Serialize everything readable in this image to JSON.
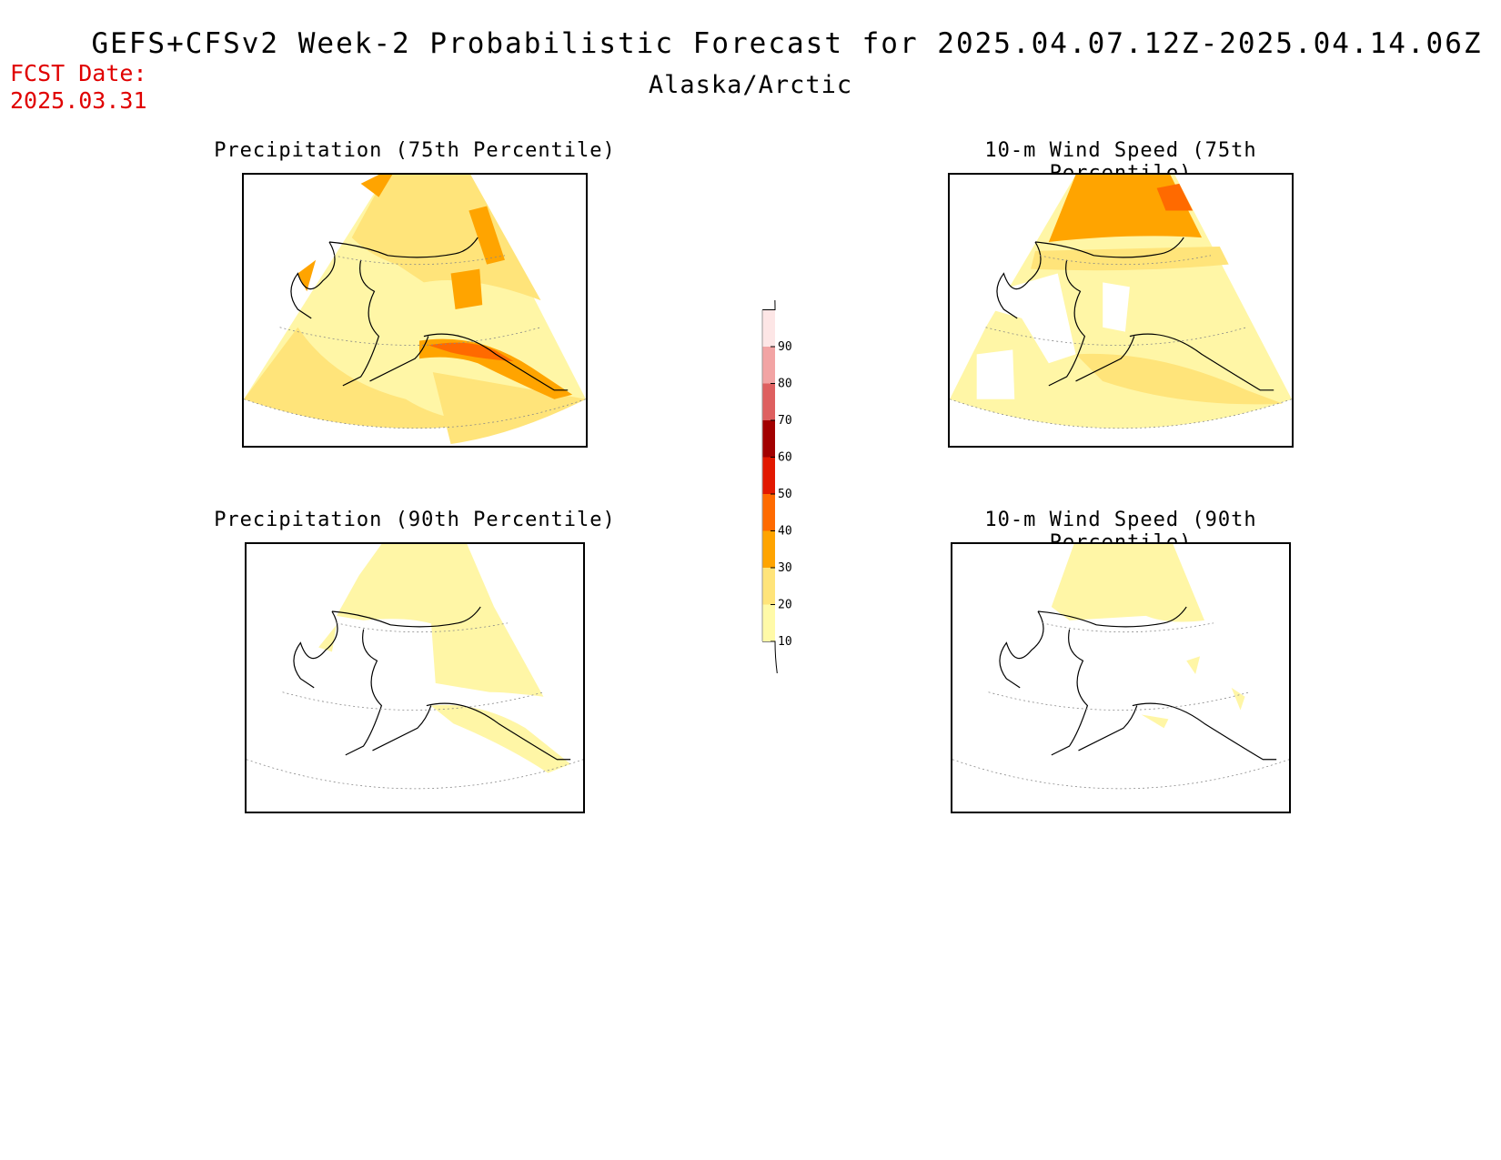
{
  "header": {
    "main_title": "GEFS+CFSv2 Week-2 Probabilistic Forecast for 2025.04.07.12Z-2025.04.14.06Z",
    "region": "Alaska/Arctic",
    "fcst_label": "FCST Date:",
    "fcst_date": "2025.03.31"
  },
  "panels": [
    {
      "title": "Precipitation (75th Percentile)"
    },
    {
      "title": "10-m Wind Speed (75th Percentile)"
    },
    {
      "title": "Precipitation (90th Percentile)"
    },
    {
      "title": "10-m Wind Speed (90th Percentile)"
    }
  ],
  "colorbar": {
    "levels": [
      "10",
      "20",
      "30",
      "40",
      "50",
      "60",
      "70",
      "80",
      "90"
    ],
    "colors": [
      "#fffaa8",
      "#ffe47a",
      "#ffa400",
      "#ff6a00",
      "#e21800",
      "#a20000",
      "#de6060",
      "#f2a4a4",
      "#fde6e6"
    ]
  },
  "colors": {
    "fcst_date": "#e00000",
    "light_yellow": "#fff6a6",
    "yellow": "#ffe47a",
    "orange": "#ffa400",
    "dark_orange": "#ff6a00"
  }
}
